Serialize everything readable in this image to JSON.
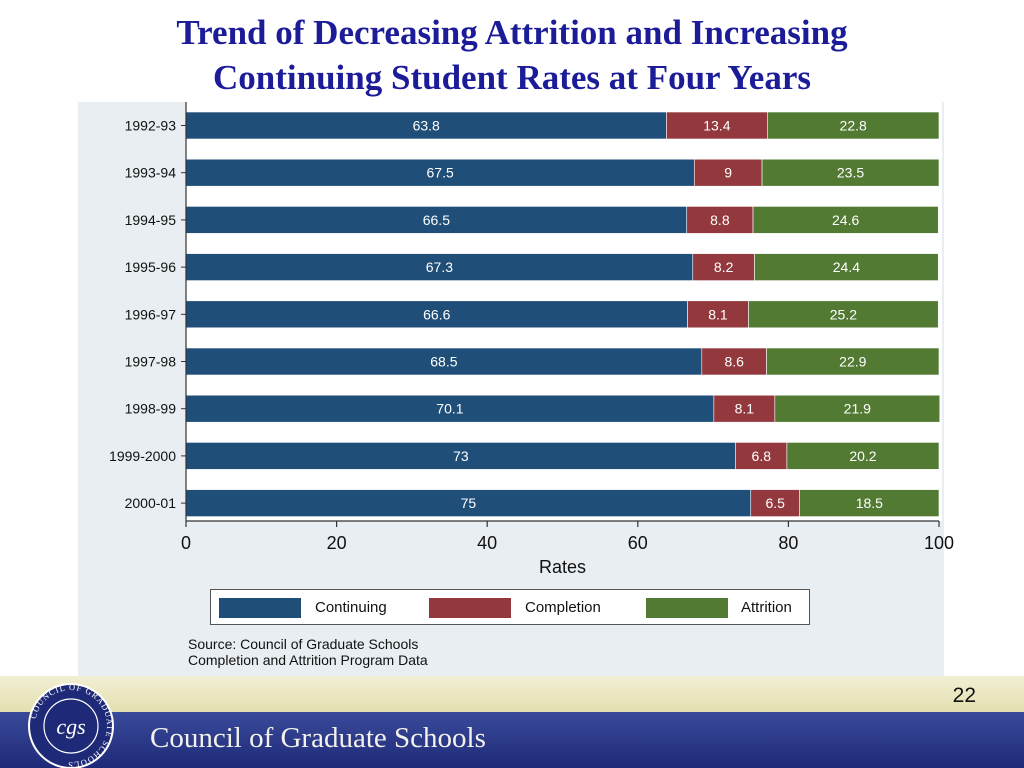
{
  "slide": {
    "title_line1": "Trend of  Decreasing Attrition and Increasing",
    "title_line2": "Continuing Student Rates at Four Years",
    "source_line1": "Source: Council of Graduate Schools",
    "source_line2": "Completion and Attrition Program Data",
    "page_number": "22"
  },
  "footer": {
    "org_name": "Council of Graduate Schools",
    "logo_arc_text": "COUNCIL OF GRADUATE SCHOOLS",
    "logo_monogram": "cgs"
  },
  "colors": {
    "continuing": "#1f4e79",
    "completion": "#93393e",
    "attrition": "#527a33",
    "title": "#1c1c99",
    "panel": "#e8eef2"
  },
  "chart_data": {
    "type": "bar",
    "orientation": "horizontal",
    "stacked": true,
    "categories": [
      "1992-93",
      "1993-94",
      "1994-95",
      "1995-96",
      "1996-97",
      "1997-98",
      "1998-99",
      "1999-2000",
      "2000-01"
    ],
    "series": [
      {
        "name": "Continuing",
        "values": [
          63.8,
          67.5,
          66.5,
          67.3,
          66.6,
          68.5,
          70.1,
          73,
          75
        ]
      },
      {
        "name": "Completion",
        "values": [
          13.4,
          9,
          8.8,
          8.2,
          8.1,
          8.6,
          8.1,
          6.8,
          6.5
        ]
      },
      {
        "name": "Attrition",
        "values": [
          22.8,
          23.5,
          24.6,
          24.4,
          25.2,
          22.9,
          21.9,
          20.2,
          18.5
        ]
      }
    ],
    "xlabel": "Rates",
    "xlim": [
      0,
      100
    ],
    "xticks": [
      0,
      20,
      40,
      60,
      80,
      100
    ],
    "grid": false,
    "legend_position": "bottom"
  }
}
